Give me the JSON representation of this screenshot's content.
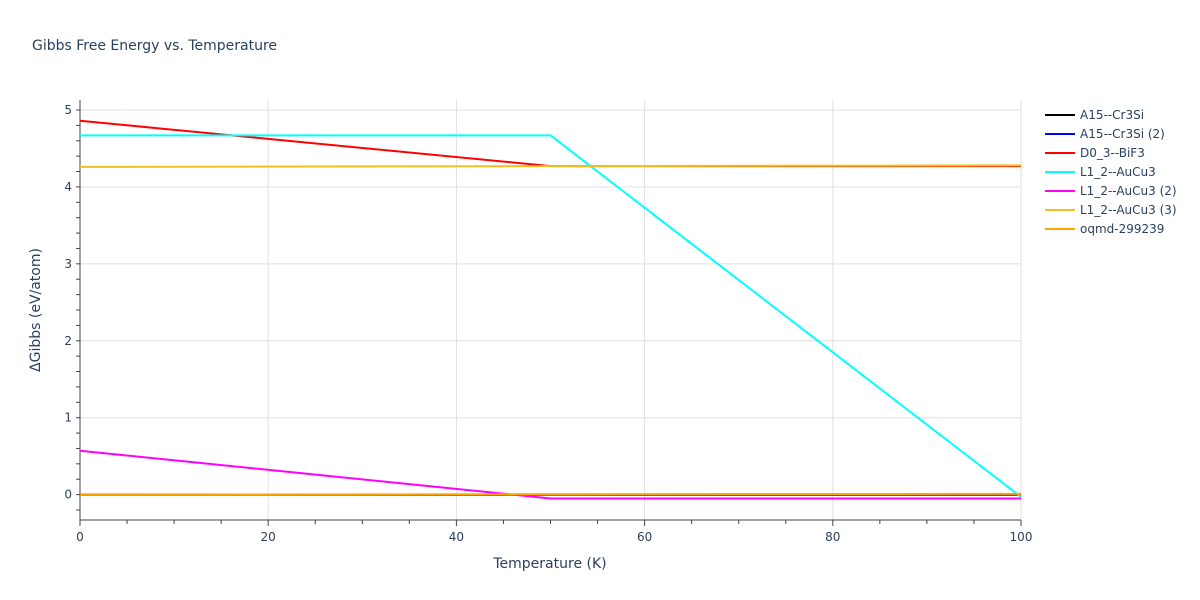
{
  "chart_data": {
    "type": "line",
    "title": "Gibbs Free Energy vs. Temperature",
    "xlabel": "Temperature (K)",
    "ylabel": "ΔGibbs (eV/atom)",
    "xlim": [
      0,
      100
    ],
    "ylim": [
      -0.33,
      5.13
    ],
    "xticks": [
      0,
      20,
      40,
      60,
      80,
      100
    ],
    "yticks": [
      0,
      1,
      2,
      3,
      4,
      5
    ],
    "grid": true,
    "legend": "right",
    "series": [
      {
        "name": "A15--Cr3Si",
        "color": "#000000",
        "x": [
          0,
          50,
          100
        ],
        "y": [
          0,
          0,
          0
        ]
      },
      {
        "name": "A15--Cr3Si (2)",
        "color": "#0000ff",
        "x": [
          0,
          50,
          100
        ],
        "y": [
          0,
          0,
          0
        ]
      },
      {
        "name": "D0_3--BiF3",
        "color": "#ff0000",
        "x": [
          0,
          50,
          100
        ],
        "y": [
          4.86,
          4.27,
          4.27
        ]
      },
      {
        "name": "L1_2--AuCu3",
        "color": "#00ffff",
        "x": [
          0,
          50,
          100
        ],
        "y": [
          4.67,
          4.67,
          -0.03
        ]
      },
      {
        "name": "L1_2--AuCu3 (2)",
        "color": "#ff00ff",
        "x": [
          0,
          50,
          100
        ],
        "y": [
          0.57,
          -0.05,
          -0.05
        ]
      },
      {
        "name": "L1_2--AuCu3 (3)",
        "color": "#f0c020",
        "x": [
          0,
          50,
          100
        ],
        "y": [
          4.26,
          4.27,
          4.28
        ]
      },
      {
        "name": "oqmd-299239",
        "color": "#ffa500",
        "x": [
          0,
          50,
          100
        ],
        "y": [
          0,
          0.005,
          0.01
        ]
      }
    ]
  }
}
